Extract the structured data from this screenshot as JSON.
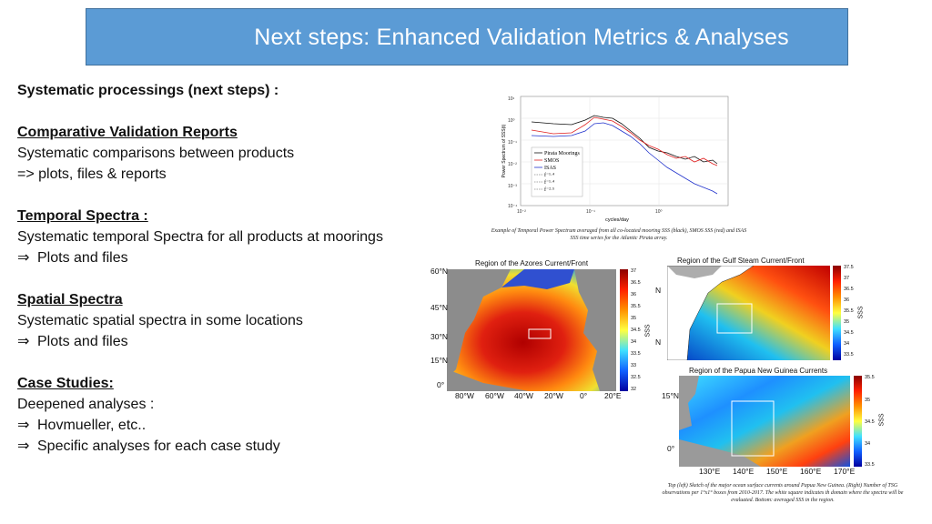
{
  "header": {
    "title": "Next steps: Enhanced Validation Metrics & Analyses"
  },
  "content": {
    "intro": "Systematic processings (next steps) :",
    "sections": [
      {
        "heading": "Comparative Validation Reports",
        "lines": [
          "Systematic comparisons between products",
          "=> plots, files & reports"
        ]
      },
      {
        "heading": "Temporal Spectra :",
        "lines": [
          "Systematic temporal Spectra for all products at moorings",
          "Plots and files"
        ]
      },
      {
        "heading": "Spatial Spectra",
        "lines": [
          "Systematic spatial spectra in some locations",
          "Plots and files"
        ]
      },
      {
        "heading": "Case Studies:",
        "lines": [
          "Deepened analyses :",
          "Hovmueller, etc..",
          "Specific analyses for each case study"
        ]
      }
    ],
    "arrow_symbol": "⇒"
  },
  "spectrum_figure": {
    "ylabel": "Power Spectrum of SSS(t)",
    "xlabel": "cycles/day",
    "yticks": [
      "10¹",
      "10⁰",
      "10⁻¹",
      "10⁻²",
      "10⁻³",
      "10⁻⁴"
    ],
    "xticks": [
      "10⁻²",
      "10⁻¹",
      "10⁰"
    ],
    "legend": [
      "Pirata Moorings",
      "SMOS",
      "ISAS",
      "f⁻¹·⁴",
      "f⁻¹·⁴",
      "f⁻²·⁵"
    ],
    "series_colors": {
      "pirata": "#111111",
      "smos": "#e02020",
      "isas": "#2233cc"
    },
    "caption": "Example of Temporal Power Spectrum averaged from all co-located mooring SSS (black), SMOS SSS (red) and ISAS SSS time series for the Atlantic Pirata array."
  },
  "maps": {
    "azores": {
      "title": "Region of the Azores Current/Front",
      "lat_labels": [
        "60°N",
        "45°N",
        "30°N",
        "15°N",
        "0°"
      ],
      "lon_labels": [
        "80°W",
        "60°W",
        "40°W",
        "20°W",
        "0°",
        "20°E"
      ],
      "colorbar": [
        "37",
        "36.5",
        "36",
        "35.5",
        "35",
        "34.5",
        "34",
        "33.5",
        "33",
        "32.5",
        "32"
      ],
      "cb_label": "SSS"
    },
    "gulf": {
      "title": "Region of the Gulf Steam Current/Front",
      "lat_labels": [
        "N",
        "N"
      ],
      "colorbar": [
        "37.5",
        "37",
        "36.5",
        "36",
        "35.5",
        "35",
        "34.5",
        "34",
        "33.5"
      ],
      "cb_label": "SSS"
    },
    "png": {
      "title": "Region of the Papua New Guinea Currents",
      "lat_labels": [
        "15°N",
        "0°"
      ],
      "lon_labels": [
        "130°E",
        "140°E",
        "150°E",
        "160°E",
        "170°E"
      ],
      "colorbar": [
        "35.5",
        "35",
        "34.5",
        "34",
        "33.5"
      ],
      "cb_label": "SSS"
    },
    "caption": "Top (left) Sketch of the major ocean surface currents around Papua New Guinea. (Right) Number of TSG observations per 1°x1° boxes from 2010-2017. The white square indicates th domain where the spectra will be evaluated. Bottom: averaged SSS in the region."
  }
}
